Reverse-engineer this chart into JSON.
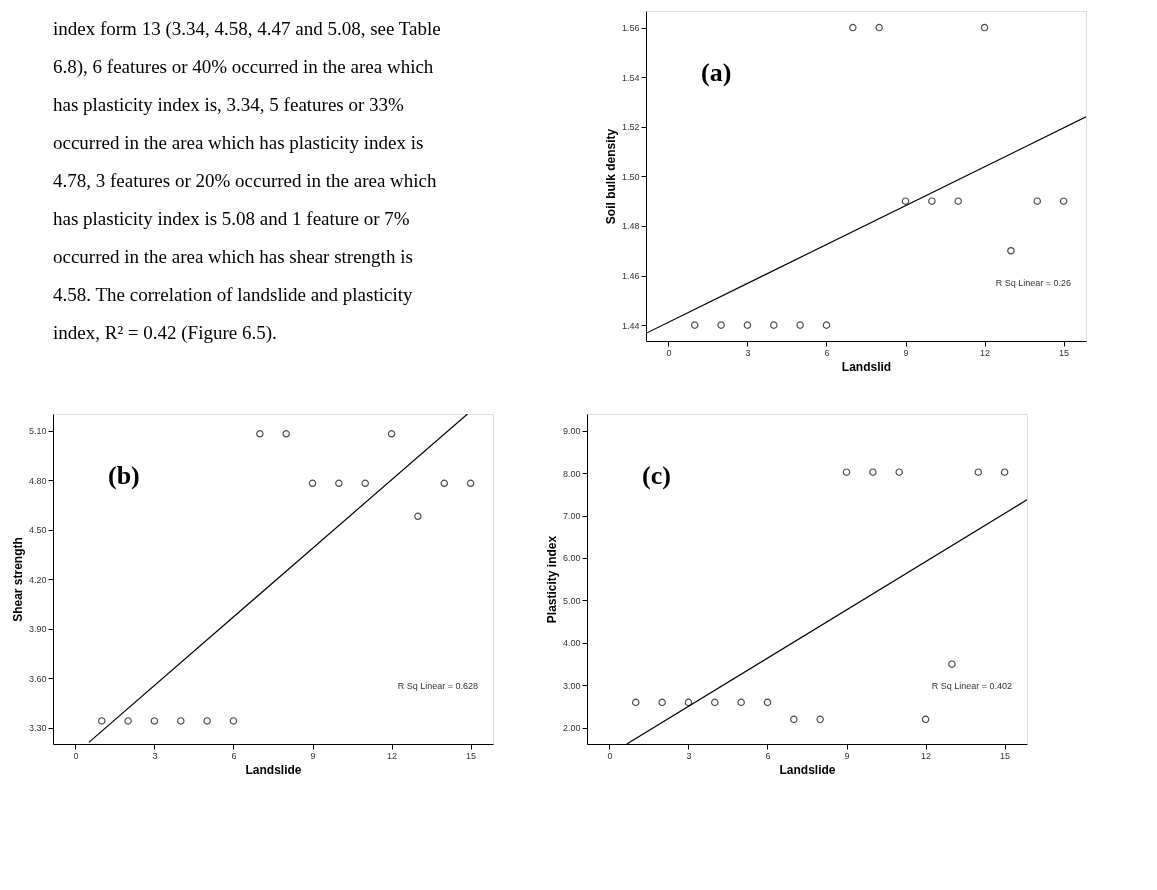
{
  "chart_data": [
    {
      "type": "other",
      "annotations": [
        "index form 13 (3.34, 4.58, 4.47 and 5.08, see Table",
        "6.8), 6 features or 40% occurred in the area which",
        "has plasticity index is, 3.34, 5 features or 33%",
        "occurred in the area which has plasticity index is",
        "4.78, 3 features or 20% occurred in the area which",
        "has plasticity index is 5.08 and 1 feature or 7%",
        "occurred in the area which has shear strength is",
        "4.58. The correlation of landslide and plasticity",
        "index, R² = 0.42 (Figure 6.5)."
      ]
    },
    {
      "type": "scatter",
      "xlabel": "Landslid",
      "ylabel": "Soil bulk density",
      "xlim": [
        -0.85,
        15.85
      ],
      "xticks": [
        0,
        3,
        6,
        9,
        12,
        15
      ],
      "ylim": [
        1.4336,
        1.5667
      ],
      "yticks": [
        1.44,
        1.46,
        1.48,
        {
          "value": 1.5,
          "label": "1.50"
        },
        1.52,
        1.54,
        1.56
      ],
      "grid": false,
      "legend": false,
      "series": [
        {
          "type": "scatter",
          "color": "#000000",
          "x": [
            1,
            2,
            3,
            4,
            5,
            6,
            7,
            8,
            9,
            10,
            11,
            12,
            13,
            14,
            15
          ],
          "values": [
            1.44,
            1.44,
            1.44,
            1.44,
            1.44,
            1.44,
            1.56,
            1.56,
            1.49,
            1.49,
            1.49,
            1.56,
            1.47,
            1.49,
            1.49
          ],
          "marker": "circle"
        },
        {
          "type": "line",
          "color": "#000000",
          "line_style": "solid",
          "x": [
            -0.85,
            15.85
          ],
          "values": [
            1.4367,
            1.524
          ]
        }
      ],
      "annotations": [
        "(a)",
        "R Sq Linear = 0.26"
      ]
    },
    {
      "type": "scatter",
      "xlabel": "Landslide",
      "ylabel": "Shear strength",
      "xlim": [
        -0.85,
        15.85
      ],
      "xticks": [
        0,
        3,
        6,
        9,
        12,
        15
      ],
      "ylim": [
        3.2,
        5.2
      ],
      "yticks": [
        {
          "value": 3.3,
          "label": "3.30"
        },
        {
          "value": 3.6,
          "label": "3.60"
        },
        {
          "value": 3.9,
          "label": "3.90"
        },
        {
          "value": 4.2,
          "label": "4.20"
        },
        {
          "value": 4.5,
          "label": "4.50"
        },
        {
          "value": 4.8,
          "label": "4.80"
        },
        {
          "value": 5.1,
          "label": "5.10"
        }
      ],
      "grid": false,
      "legend": false,
      "series": [
        {
          "type": "scatter",
          "color": "#000000",
          "x": [
            1,
            2,
            3,
            4,
            5,
            6,
            7,
            8,
            9,
            10,
            11,
            12,
            13,
            14,
            15
          ],
          "values": [
            3.34,
            3.34,
            3.34,
            3.34,
            3.34,
            3.34,
            5.08,
            5.08,
            4.78,
            4.78,
            4.78,
            5.08,
            4.58,
            4.78,
            4.78
          ],
          "marker": "circle"
        },
        {
          "type": "line",
          "color": "#000000",
          "line_style": "solid",
          "x": [
            0.51,
            14.88
          ],
          "values": [
            3.21,
            5.2
          ]
        }
      ],
      "annotations": [
        "(b)",
        "R Sq Linear = 0.628"
      ]
    },
    {
      "type": "scatter",
      "xlabel": "Landslide",
      "ylabel": "Plasticity index",
      "xlim": [
        -0.85,
        15.85
      ],
      "xticks": [
        0,
        3,
        6,
        9,
        12,
        15
      ],
      "ylim": [
        1.62,
        9.39
      ],
      "yticks": [
        {
          "value": 2,
          "label": "2.00"
        },
        {
          "value": 3,
          "label": "3.00"
        },
        {
          "value": 4,
          "label": "4.00"
        },
        {
          "value": 5,
          "label": "5.00"
        },
        {
          "value": 6,
          "label": "6.00"
        },
        {
          "value": 7,
          "label": "7.00"
        },
        {
          "value": 8,
          "label": "8.00"
        },
        {
          "value": 9,
          "label": "9.00"
        }
      ],
      "grid": false,
      "legend": false,
      "series": [
        {
          "type": "scatter",
          "color": "#000000",
          "x": [
            1,
            2,
            3,
            4,
            5,
            6,
            7,
            8,
            9,
            10,
            11,
            12,
            13,
            14,
            15
          ],
          "values": [
            2.6,
            2.6,
            2.6,
            2.6,
            2.6,
            2.6,
            2.2,
            2.2,
            8.02,
            8.02,
            8.02,
            2.2,
            3.5,
            8.02,
            8.02
          ],
          "marker": "circle"
        },
        {
          "type": "line",
          "color": "#000000",
          "line_style": "solid",
          "x": [
            0.66,
            15.85
          ],
          "values": [
            1.62,
            7.37
          ]
        }
      ],
      "annotations": [
        "(c)",
        "R Sq Linear = 0.402"
      ]
    }
  ]
}
